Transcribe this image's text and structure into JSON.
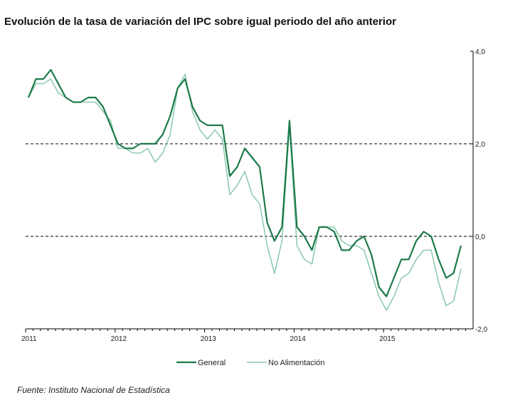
{
  "title": "Evolución de la tasa de variación del IPC sobre igual  periodo del año anterior",
  "source": "Fuente: Instituto Nacional de Estadística",
  "colors": {
    "General": "#1c7a4a",
    "No Alimentación": "#8fcab0"
  },
  "chart_data": {
    "type": "line",
    "title": "Evolución de la tasa de variación del IPC sobre igual  periodo del año anterior",
    "xlabel": "",
    "ylabel": "",
    "x_ticks": [
      "2011",
      "2012",
      "2013",
      "2014",
      "2015"
    ],
    "y_ticks": [
      "4,0",
      "2,0",
      "0,0",
      "-2,0"
    ],
    "ylim": [
      -2,
      4
    ],
    "reference_lines": [
      2,
      0
    ],
    "legend_position": "bottom",
    "x": [
      "2011-01",
      "2011-02",
      "2011-03",
      "2011-04",
      "2011-05",
      "2011-06",
      "2011-07",
      "2011-08",
      "2011-09",
      "2011-10",
      "2011-11",
      "2011-12",
      "2012-01",
      "2012-02",
      "2012-03",
      "2012-04",
      "2012-05",
      "2012-06",
      "2012-07",
      "2012-08",
      "2012-09",
      "2012-10",
      "2012-11",
      "2012-12",
      "2013-01",
      "2013-02",
      "2013-03",
      "2013-04",
      "2013-05",
      "2013-06",
      "2013-07",
      "2013-08",
      "2013-09",
      "2013-10",
      "2013-11",
      "2013-12",
      "2014-01",
      "2014-02",
      "2014-03",
      "2014-04",
      "2014-05",
      "2014-06",
      "2014-07",
      "2014-08",
      "2014-09",
      "2014-10",
      "2014-11",
      "2014-12",
      "2015-01",
      "2015-02",
      "2015-03",
      "2015-04",
      "2015-05",
      "2015-06",
      "2015-07",
      "2015-08",
      "2015-09",
      "2015-10",
      "2015-11"
    ],
    "series": [
      {
        "name": "General",
        "values": [
          3.0,
          3.4,
          3.4,
          3.6,
          3.3,
          3.0,
          2.9,
          2.9,
          3.0,
          3.0,
          2.8,
          2.4,
          2.0,
          1.9,
          1.9,
          2.0,
          2.0,
          2.0,
          2.2,
          2.6,
          3.2,
          3.4,
          2.8,
          2.5,
          2.4,
          2.4,
          2.4,
          1.3,
          1.5,
          1.9,
          1.7,
          1.5,
          0.3,
          -0.1,
          0.2,
          2.5,
          0.2,
          0.0,
          -0.3,
          0.2,
          0.2,
          0.1,
          -0.3,
          -0.3,
          -0.1,
          0.0,
          -0.4,
          -1.1,
          -1.3,
          -0.9,
          -0.5,
          -0.5,
          -0.1,
          0.1,
          0.0,
          -0.5,
          -0.9,
          -0.8,
          -0.2
        ]
      },
      {
        "name": "No Alimentación",
        "values": [
          3.0,
          3.3,
          3.3,
          3.4,
          3.1,
          3.0,
          2.9,
          2.9,
          2.9,
          2.9,
          2.7,
          2.5,
          1.9,
          1.9,
          1.8,
          1.8,
          1.9,
          1.6,
          1.8,
          2.2,
          3.2,
          3.5,
          2.7,
          2.3,
          2.1,
          2.3,
          2.1,
          0.9,
          1.1,
          1.4,
          0.9,
          0.7,
          -0.2,
          -0.8,
          -0.1,
          2.4,
          -0.2,
          -0.5,
          -0.6,
          0.2,
          0.2,
          0.2,
          -0.1,
          -0.2,
          -0.2,
          -0.3,
          -0.8,
          -1.3,
          -1.6,
          -1.3,
          -0.9,
          -0.8,
          -0.5,
          -0.3,
          -0.3,
          -1.0,
          -1.5,
          -1.4,
          -0.7
        ]
      }
    ]
  },
  "legend": [
    {
      "label": "General"
    },
    {
      "label": "No Alimentación"
    }
  ]
}
